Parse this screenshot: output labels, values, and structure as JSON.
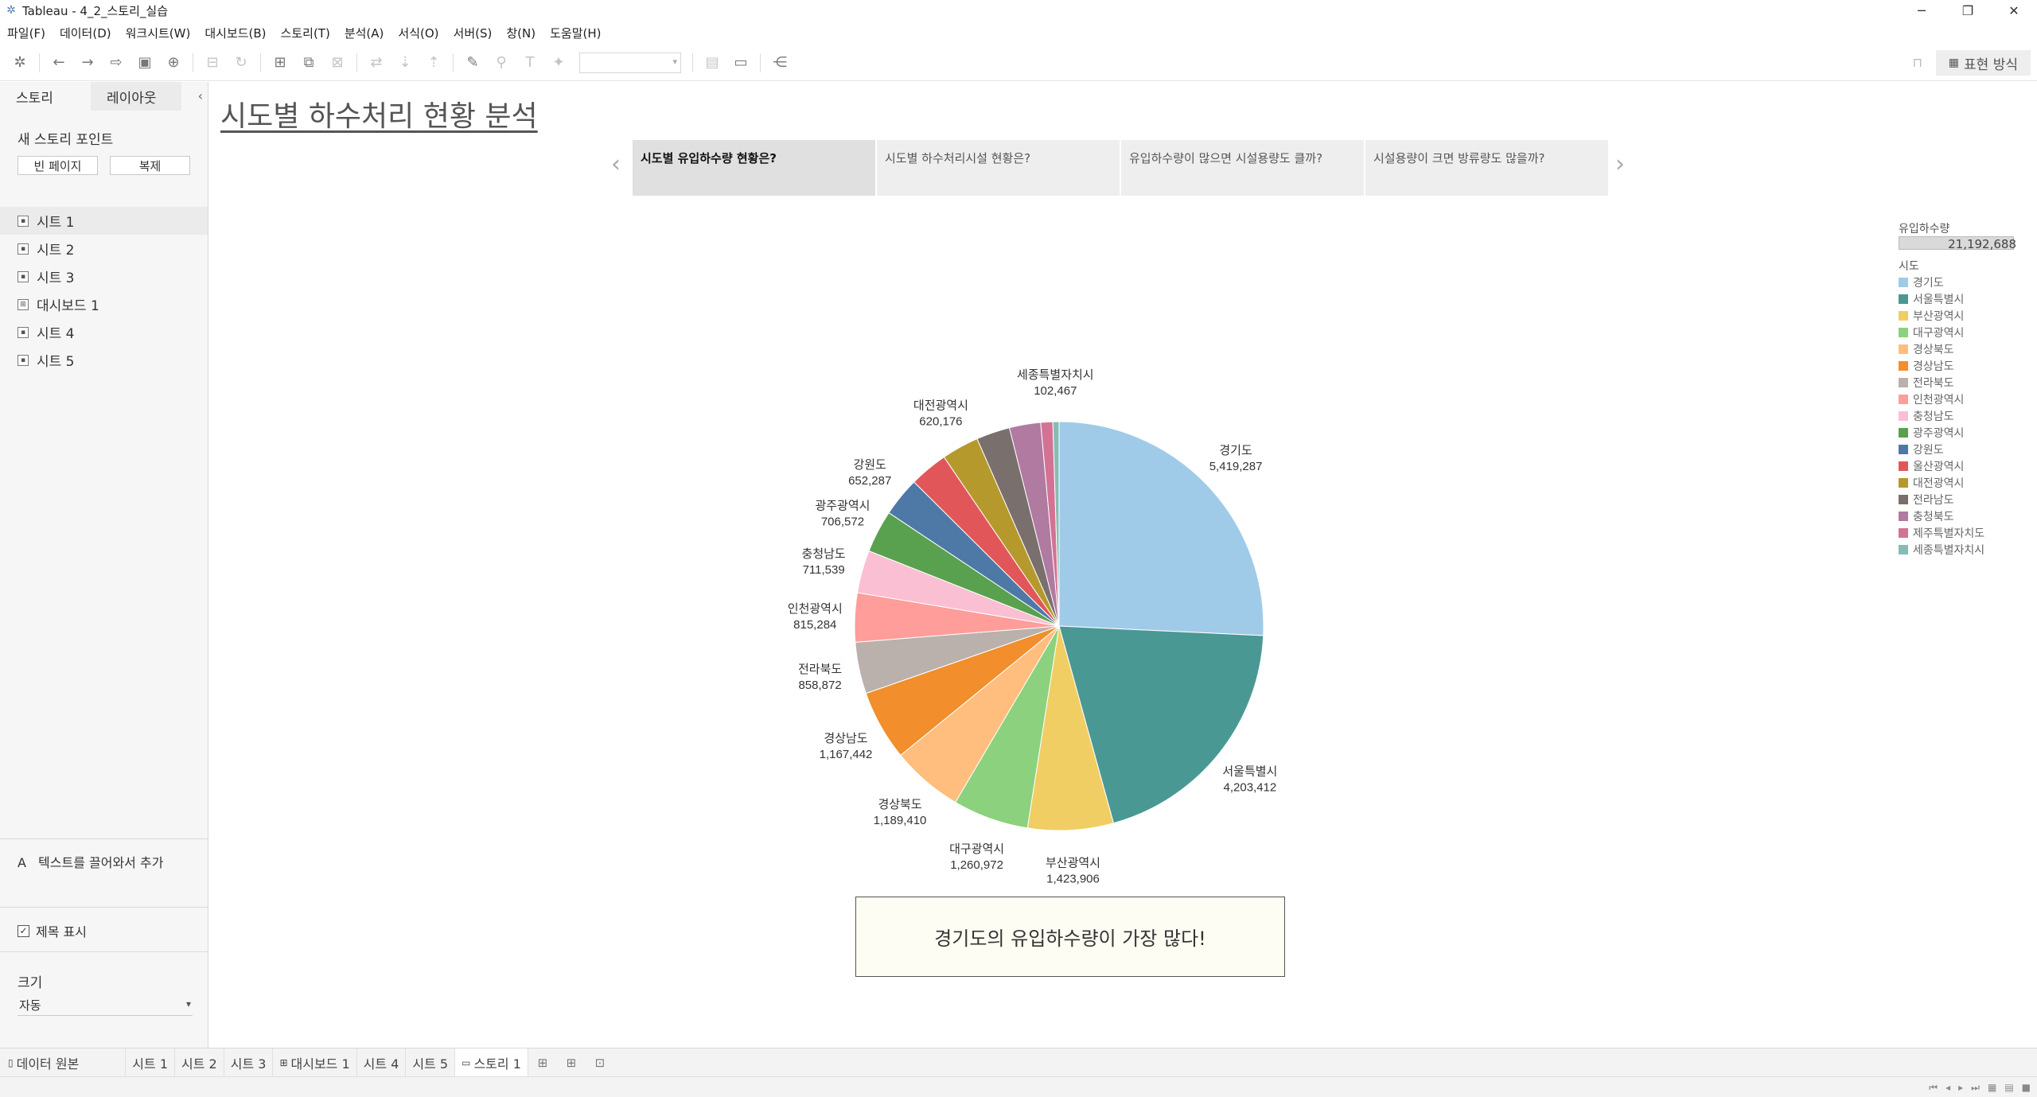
{
  "window": {
    "title": "Tableau - 4_2_스토리_실습",
    "minimize": "─",
    "maximize": "❐",
    "close": "✕"
  },
  "menu": [
    "파일(F)",
    "데이터(D)",
    "워크시트(W)",
    "대시보드(B)",
    "스토리(T)",
    "분석(A)",
    "서식(O)",
    "서버(S)",
    "창(N)",
    "도움말(H)"
  ],
  "toolbar": {
    "show_me_label": "표현 방식"
  },
  "sidebar": {
    "tabs": [
      "스토리",
      "레이아웃"
    ],
    "new_story_point": "새 스토리 포인트",
    "blank_button": "빈 페이지",
    "duplicate_button": "복제",
    "sheets": [
      {
        "label": "시트 1",
        "icon": "worksheet-icon"
      },
      {
        "label": "시트 2",
        "icon": "worksheet-icon"
      },
      {
        "label": "시트 3",
        "icon": "worksheet-icon"
      },
      {
        "label": "대시보드 1",
        "icon": "dashboard-icon"
      },
      {
        "label": "시트 4",
        "icon": "worksheet-icon"
      },
      {
        "label": "시트 5",
        "icon": "worksheet-icon"
      }
    ],
    "drag_text": "텍스트를 끌어와서 추가",
    "drag_text_icon": "A",
    "show_title": "제목 표시",
    "size_label": "크기",
    "size_value": "자동"
  },
  "story": {
    "title": "시도별 하수처리 현황 분석",
    "points": [
      "시도별 유입하수량 현황은?",
      "시도별 하수처리시설 현황은?",
      "유입하수량이 많으면 시설용량도 클까?",
      "시설용량이 크면 방류량도 많을까?"
    ],
    "caption": "경기도의 유입하수량이 가장 많다!"
  },
  "legend": {
    "size_title": "유입하수량",
    "size_value": "21,192,688",
    "color_title": "시도"
  },
  "chart_data": {
    "type": "pie",
    "measure": "유입하수량",
    "total": "21,192,688",
    "slices": [
      {
        "label": "경기도",
        "value": 5419287,
        "display": "5,419,287",
        "color": "#a0cbe8"
      },
      {
        "label": "서울특별시",
        "value": 4203412,
        "display": "4,203,412",
        "color": "#499894"
      },
      {
        "label": "부산광역시",
        "value": 1423906,
        "display": "1,423,906",
        "color": "#f1ce63"
      },
      {
        "label": "대구광역시",
        "value": 1260972,
        "display": "1,260,972",
        "color": "#8cd17d"
      },
      {
        "label": "경상북도",
        "value": 1189410,
        "display": "1,189,410",
        "color": "#ffbe7d"
      },
      {
        "label": "경상남도",
        "value": 1167442,
        "display": "1,167,442",
        "color": "#f28e2b"
      },
      {
        "label": "전라북도",
        "value": 858872,
        "display": "858,872",
        "color": "#bab0ac"
      },
      {
        "label": "인천광역시",
        "value": 815284,
        "display": "815,284",
        "color": "#ff9d9a"
      },
      {
        "label": "충청남도",
        "value": 711539,
        "display": "711,539",
        "color": "#fabfd2"
      },
      {
        "label": "광주광역시",
        "value": 706572,
        "display": "706,572",
        "color": "#59a14f"
      },
      {
        "label": "강원도",
        "value": 652287,
        "display": "652,287",
        "color": "#4e79a7"
      },
      {
        "label": "울산광역시",
        "value": 640000,
        "display": "",
        "color": "#e15759"
      },
      {
        "label": "대전광역시",
        "value": 620176,
        "display": "620,176",
        "color": "#b6992d"
      },
      {
        "label": "전라남도",
        "value": 560000,
        "display": "",
        "color": "#79706e"
      },
      {
        "label": "충청북도",
        "value": 520000,
        "display": "",
        "color": "#b07aa1"
      },
      {
        "label": "제주특별자치도",
        "value": 200000,
        "display": "",
        "color": "#d37295"
      },
      {
        "label": "세종특별자치시",
        "value": 102467,
        "display": "102,467",
        "color": "#86bcb6"
      }
    ]
  },
  "bottom_tabs": [
    "데이터 원본",
    "시트 1",
    "시트 2",
    "시트 3",
    "대시보드 1",
    "시트 4",
    "시트 5",
    "스토리 1"
  ]
}
